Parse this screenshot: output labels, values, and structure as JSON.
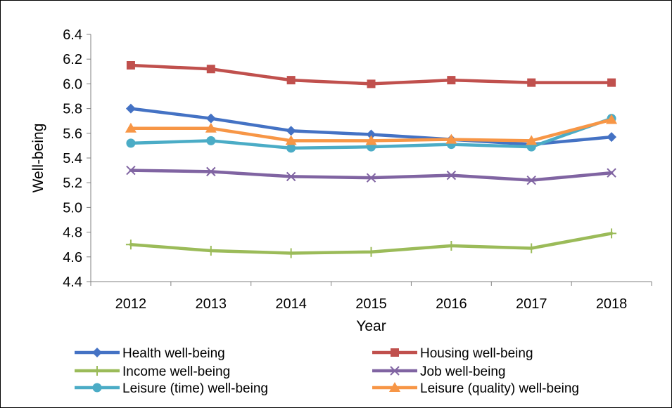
{
  "chart_data": {
    "type": "line",
    "xlabel": "Year",
    "ylabel": "Well-being",
    "ylim": [
      4.4,
      6.4
    ],
    "yticks": [
      "4.4",
      "4.6",
      "4.8",
      "5.0",
      "5.2",
      "5.4",
      "5.6",
      "5.8",
      "6.0",
      "6.2",
      "6.4"
    ],
    "categories": [
      "2012",
      "2013",
      "2014",
      "2015",
      "2016",
      "2017",
      "2018"
    ],
    "grid": false,
    "legend_position": "bottom",
    "series": [
      {
        "name": "Health well-being",
        "color": "#4472C4",
        "marker": "diamond",
        "values": [
          5.8,
          5.72,
          5.62,
          5.59,
          5.55,
          5.51,
          5.57
        ]
      },
      {
        "name": "Housing well-being",
        "color": "#C0504D",
        "marker": "square",
        "values": [
          6.15,
          6.12,
          6.03,
          6.0,
          6.03,
          6.01,
          6.01
        ]
      },
      {
        "name": "Income well-being",
        "color": "#9BBB59",
        "marker": "plus",
        "values": [
          4.7,
          4.65,
          4.63,
          4.64,
          4.69,
          4.67,
          4.79
        ]
      },
      {
        "name": "Job well-being",
        "color": "#8064A2",
        "marker": "x",
        "values": [
          5.3,
          5.29,
          5.25,
          5.24,
          5.26,
          5.22,
          5.28
        ]
      },
      {
        "name": "Leisure (time) well-being",
        "color": "#4BACC6",
        "marker": "circle",
        "values": [
          5.52,
          5.54,
          5.48,
          5.49,
          5.51,
          5.49,
          5.72
        ]
      },
      {
        "name": "Leisure (quality) well-being",
        "color": "#F79646",
        "marker": "triangle",
        "values": [
          5.64,
          5.64,
          5.54,
          5.54,
          5.55,
          5.54,
          5.71
        ]
      }
    ]
  }
}
